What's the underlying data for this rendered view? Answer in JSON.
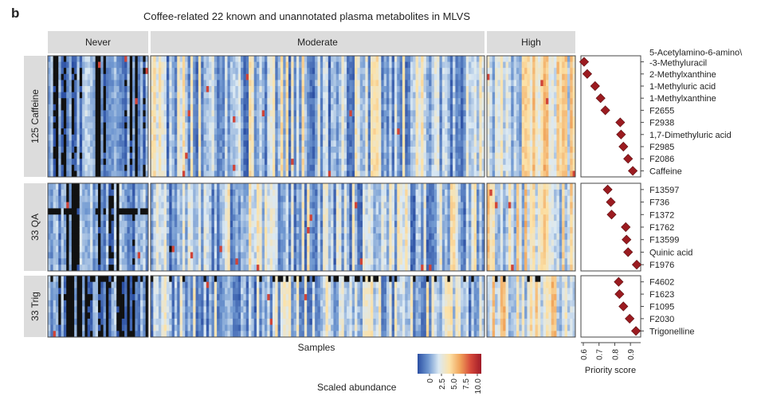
{
  "panel_letter": "b",
  "title": "Coffee-related 22 known and unannotated plasma metabolites in MLVS",
  "columns": [
    "Never",
    "Moderate",
    "High"
  ],
  "row_groups": [
    "125 Caffeine",
    "33 QA",
    "33 Trig"
  ],
  "samples_label": "Samples",
  "colorbar": {
    "label": "Scaled abundance",
    "ticks": [
      "0",
      "2.5",
      "5.0",
      "7.5",
      "10.0"
    ],
    "colors": [
      "#2b4fa3",
      "#6f97d0",
      "#dbe9f3",
      "#fce2a8",
      "#f0a35a",
      "#d5493a",
      "#a01a28"
    ]
  },
  "chart_data": {
    "type": "dot",
    "xlabel": "Priority score",
    "xlim": [
      0.6,
      0.95
    ],
    "xticks": [
      "0.6",
      "0.7",
      "0.8",
      "0.9"
    ],
    "marker_color": "#9b1b20",
    "groups": [
      {
        "name": "125 Caffeine",
        "labels": [
          "5-Acetylamino-6-amino\\\n-3-Methyluracil",
          "2-Methylxanthine",
          "1-Methyluric acid",
          "1-Methylxanthine",
          "F2655",
          "F2938",
          "1,7-Dimethyluric acid",
          "F2985",
          "F2086",
          "Caffeine"
        ],
        "scores": [
          0.605,
          0.625,
          0.675,
          0.71,
          0.74,
          0.835,
          0.84,
          0.855,
          0.885,
          0.915
        ]
      },
      {
        "name": "33 QA",
        "labels": [
          "F13597",
          "F736",
          "F1372",
          "F1762",
          "F13599",
          "Quinic acid",
          "F1976"
        ],
        "scores": [
          0.755,
          0.775,
          0.78,
          0.87,
          0.875,
          0.885,
          0.94
        ]
      },
      {
        "name": "33 Trig",
        "labels": [
          "F4602",
          "F1623",
          "F1095",
          "F2030",
          "Trigonelline"
        ],
        "scores": [
          0.825,
          0.83,
          0.855,
          0.895,
          0.935
        ]
      }
    ]
  }
}
